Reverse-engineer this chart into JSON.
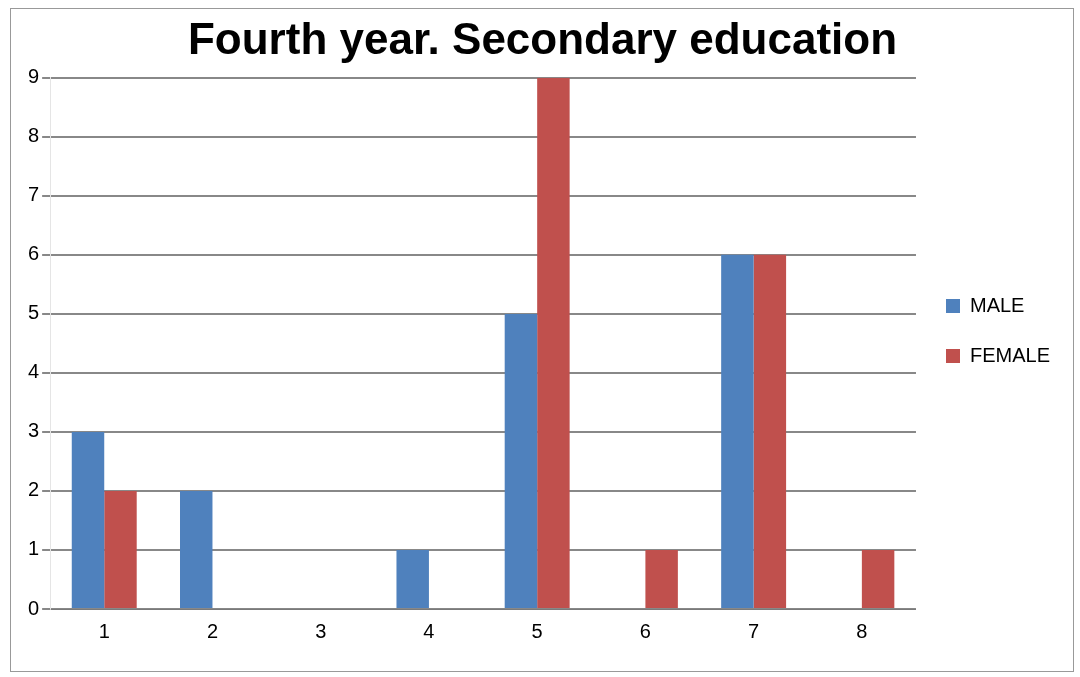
{
  "chart_data": {
    "type": "bar",
    "title": "Fourth year. Secondary education",
    "categories": [
      "1",
      "2",
      "3",
      "4",
      "5",
      "6",
      "7",
      "8"
    ],
    "series": [
      {
        "name": "MALE",
        "color": "#4f81bd",
        "values": [
          3,
          2,
          0,
          1,
          5,
          0,
          6,
          0
        ]
      },
      {
        "name": "FEMALE",
        "color": "#c0504d",
        "values": [
          2,
          0,
          0,
          0,
          9,
          1,
          6,
          1
        ]
      }
    ],
    "ylim": [
      0,
      9
    ],
    "yticks": [
      0,
      1,
      2,
      3,
      4,
      5,
      6,
      7,
      8,
      9
    ],
    "grid": "y",
    "legend": "right"
  }
}
